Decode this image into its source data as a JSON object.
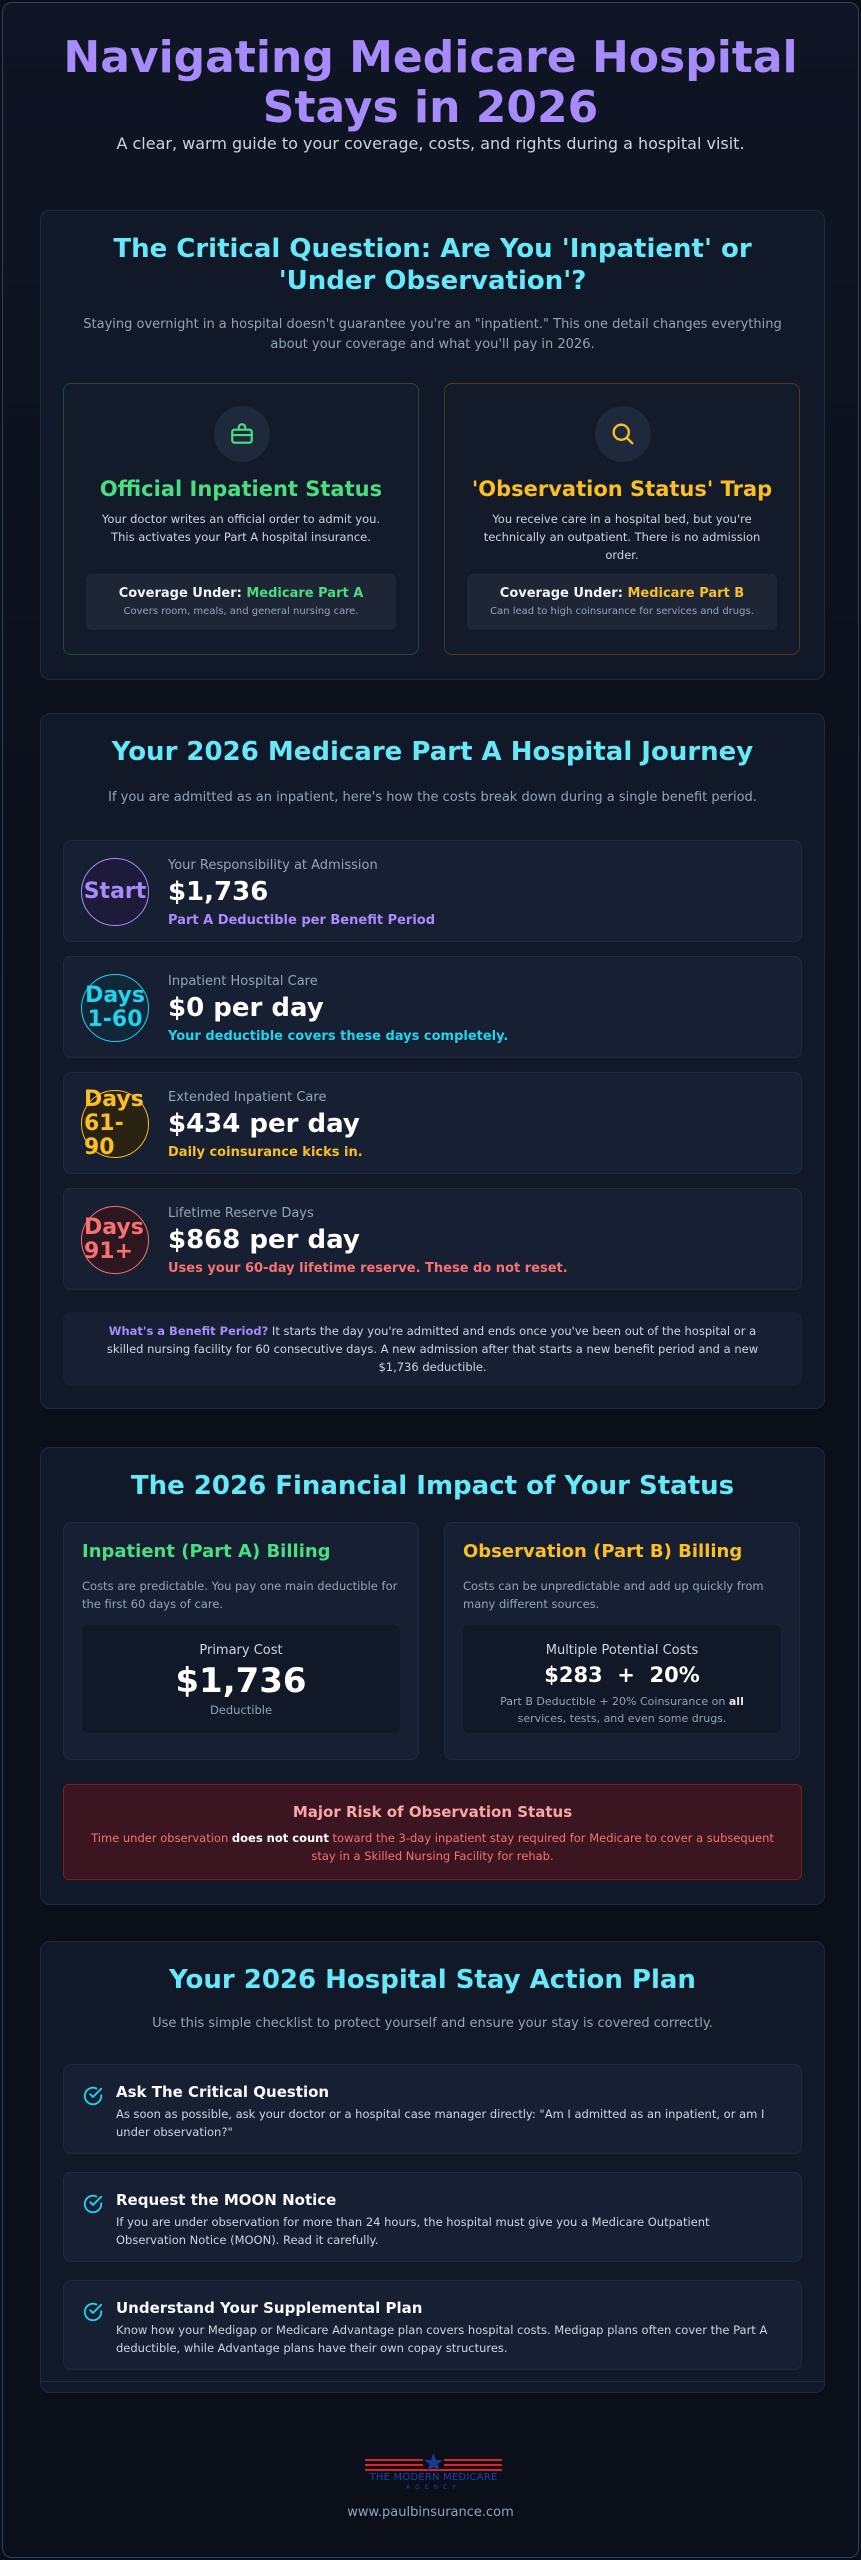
{
  "hero": {
    "title": "Navigating Medicare Hospital Stays in 2026",
    "subtitle": "A clear, warm guide to your coverage, costs, and rights during a hospital visit."
  },
  "critical": {
    "title": "The Critical Question: Are You 'Inpatient' or 'Under Observation'?",
    "subtitle": "Staying overnight in a hospital doesn't guarantee you're an \"inpatient.\" This one detail changes everything about your coverage and what you'll pay in 2026.",
    "inpatient": {
      "icon": "briefcase-icon",
      "title": "Official Inpatient Status",
      "desc": "Your doctor writes an official order to admit you. This activates your Part A hospital insurance.",
      "coverage_prefix": "Coverage Under: ",
      "coverage_part": "Medicare Part A",
      "coverage_note": "Covers room, meals, and general nursing care.",
      "color": "#4ade80"
    },
    "observation": {
      "icon": "search-icon",
      "title": "'Observation Status' Trap",
      "desc": "You receive care in a hospital bed, but you're technically an outpatient. There is no admission order.",
      "coverage_prefix": "Coverage Under: ",
      "coverage_part": "Medicare Part B",
      "coverage_note": "Can lead to high coinsurance for services and drugs.",
      "color": "#fbbf24"
    }
  },
  "journey": {
    "title": "Your 2026 Medicare Part A Hospital Journey",
    "subtitle": "If you are admitted as an inpatient, here's how the costs break down during a single benefit period.",
    "steps": [
      {
        "badge": "Start",
        "label": "Your Responsibility at Admission",
        "value": "$1,736",
        "note": "Part A Deductible per Benefit Period",
        "color": "#a78bfa"
      },
      {
        "badge": "Days 1-60",
        "label": "Inpatient Hospital Care",
        "value": "$0 per day",
        "note": "Your deductible covers these days completely.",
        "color": "#22d3ee"
      },
      {
        "badge": "Days 61-90",
        "label": "Extended Inpatient Care",
        "value": "$434 per day",
        "note": "Daily coinsurance kicks in.",
        "color": "#fbbf24"
      },
      {
        "badge": "Days 91+",
        "label": "Lifetime Reserve Days",
        "value": "$868 per day",
        "note": "Uses your 60-day lifetime reserve. These do not reset.",
        "color": "#f87171"
      }
    ],
    "benefit_q": "What's a Benefit Period?",
    "benefit_text": " It starts the day you're admitted and ends once you've been out of the hospital or a skilled nursing facility for 60 consecutive days. A new admission after that starts a new benefit period and a new $1,736 deductible."
  },
  "financial": {
    "title": "The 2026 Financial Impact of Your Status",
    "inpatient": {
      "title": "Inpatient (Part A) Billing",
      "desc": "Costs are predictable. You pay one main deductible for the first 60 days of care.",
      "box_title": "Primary Cost",
      "amount": "$1,736",
      "amount_note": "Deductible"
    },
    "observation": {
      "title": "Observation (Part B) Billing",
      "desc": "Costs can be unpredictable and add up quickly from many different sources.",
      "box_title": "Multiple Potential Costs",
      "amount": "$283  +  20%",
      "note_a": "Part B Deductible + 20% Coinsurance on ",
      "note_b": "all",
      "note_c": " services, tests, and even some drugs."
    },
    "risk": {
      "title": "Major Risk of Observation Status",
      "text_a": "Time under observation ",
      "text_b": "does not count",
      "text_c": " toward the 3-day inpatient stay required for Medicare to cover a subsequent stay in a Skilled Nursing Facility for rehab."
    }
  },
  "plan": {
    "title": "Your 2026 Hospital Stay Action Plan",
    "subtitle": "Use this simple checklist to protect yourself and ensure your stay is covered correctly.",
    "items": [
      {
        "title": "Ask The Critical Question",
        "text": "As soon as possible, ask your doctor or a hospital case manager directly: \"Am I admitted as an inpatient, or am I under observation?\""
      },
      {
        "title": "Request the MOON Notice",
        "text": "If you are under observation for more than 24 hours, the hospital must give you a Medicare Outpatient Observation Notice (MOON). Read it carefully."
      },
      {
        "title": "Understand Your Supplemental Plan",
        "text": "Know how your Medigap or Medicare Advantage plan covers hospital costs. Medigap plans often cover the Part A deductible, while Advantage plans have their own copay structures."
      }
    ]
  },
  "footer": {
    "logo_text": "THE MODERN MEDICARE",
    "logo_sub": "AGENCY",
    "url": "www.paulbinsurance.com"
  }
}
